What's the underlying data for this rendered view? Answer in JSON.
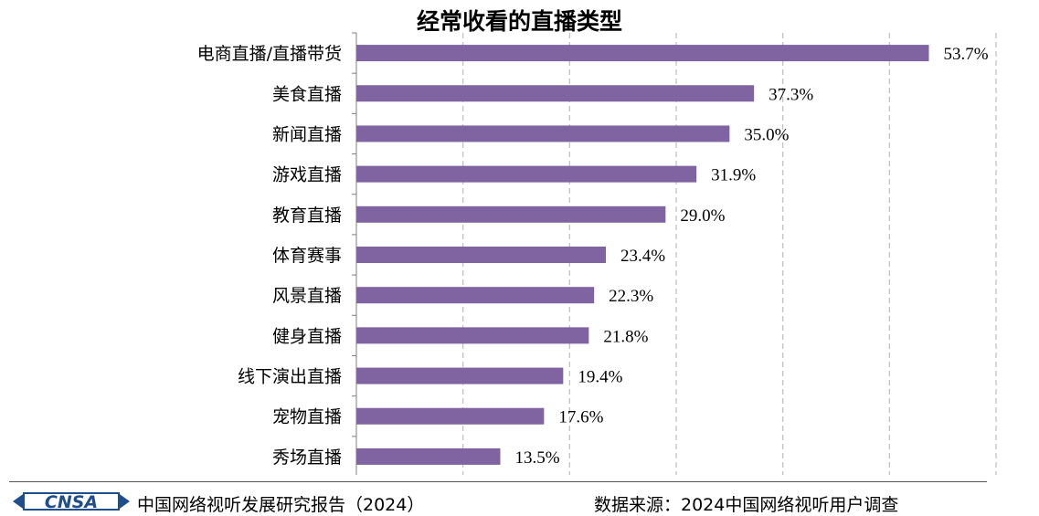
{
  "chart_data": {
    "type": "bar",
    "orientation": "horizontal",
    "title": "经常收看的直播类型",
    "categories": [
      "电商直播/直播带货",
      "美食直播",
      "新闻直播",
      "游戏直播",
      "教育直播",
      "体育赛事",
      "风景直播",
      "健身直播",
      "线下演出直播",
      "宠物直播",
      "秀场直播"
    ],
    "values": [
      53.7,
      37.3,
      35.0,
      31.9,
      29.0,
      23.4,
      22.3,
      21.8,
      19.4,
      17.6,
      13.5
    ],
    "value_labels": [
      "53.7%",
      "37.3%",
      "35.0%",
      "31.9%",
      "29.0%",
      "23.4%",
      "22.3%",
      "21.8%",
      "19.4%",
      "17.6%",
      "13.5%"
    ],
    "xlim": [
      0,
      60
    ],
    "grid": "vertical dashed",
    "bar_color": "#8064A2"
  },
  "footer": {
    "logo_text": "CNSA",
    "source_left": "中国网络视听发展研究报告（2024）",
    "source_right": "数据来源：2024中国网络视听用户调查"
  },
  "colors": {
    "bar": "#8064A2",
    "grid": "#bfbfbf",
    "logo": "#1f4e8c"
  }
}
